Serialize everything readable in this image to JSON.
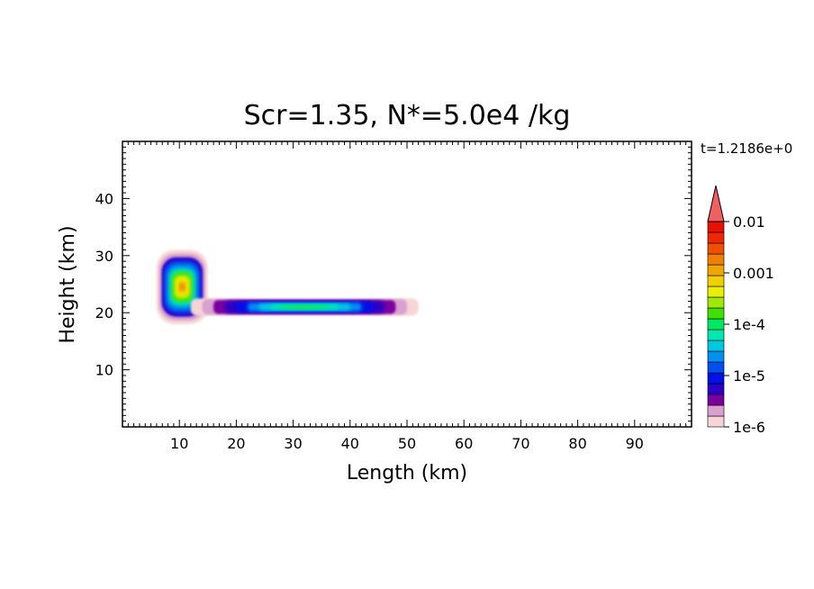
{
  "chart_data": {
    "type": "heatmap",
    "title": "Scr=1.35, N*=5.0e4 /kg",
    "timestamp": "t=1.2186e+0",
    "xlabel": "Length  (km)",
    "ylabel": "Height  (km)",
    "xlim": [
      0,
      100
    ],
    "ylim": [
      0,
      50
    ],
    "x_ticks": [
      10,
      20,
      30,
      40,
      50,
      60,
      70,
      80,
      90
    ],
    "y_ticks": [
      10,
      20,
      30,
      40
    ],
    "colorbar": {
      "scale": "log",
      "min": 1e-06,
      "max": 0.01,
      "labels": [
        {
          "text": "0.01",
          "value": 0.01
        },
        {
          "text": "0.001",
          "value": 0.001
        },
        {
          "text": "1e-4",
          "value": 0.0001
        },
        {
          "text": "1e-5",
          "value": 1e-05
        },
        {
          "text": "1e-6",
          "value": 1e-06
        }
      ],
      "colors": [
        "#f5d5d5",
        "#d9a0d0",
        "#7a00a0",
        "#2b00c8",
        "#0010e8",
        "#0050f0",
        "#0090f0",
        "#00c8e0",
        "#00e8b0",
        "#00e860",
        "#40e000",
        "#a0e800",
        "#e8f000",
        "#f0d000",
        "#f0a800",
        "#f08000",
        "#f05000",
        "#f02800",
        "#e81000"
      ],
      "overflow_color": "#f06060"
    },
    "features": [
      {
        "name": "column",
        "x_range": [
          6,
          15
        ],
        "y_range": [
          18,
          31
        ],
        "peak_value": 0.002
      },
      {
        "name": "horizontal-plume",
        "x_range": [
          12,
          52
        ],
        "y_range": [
          19.5,
          22.5
        ],
        "peak_value": 0.0002
      }
    ]
  }
}
